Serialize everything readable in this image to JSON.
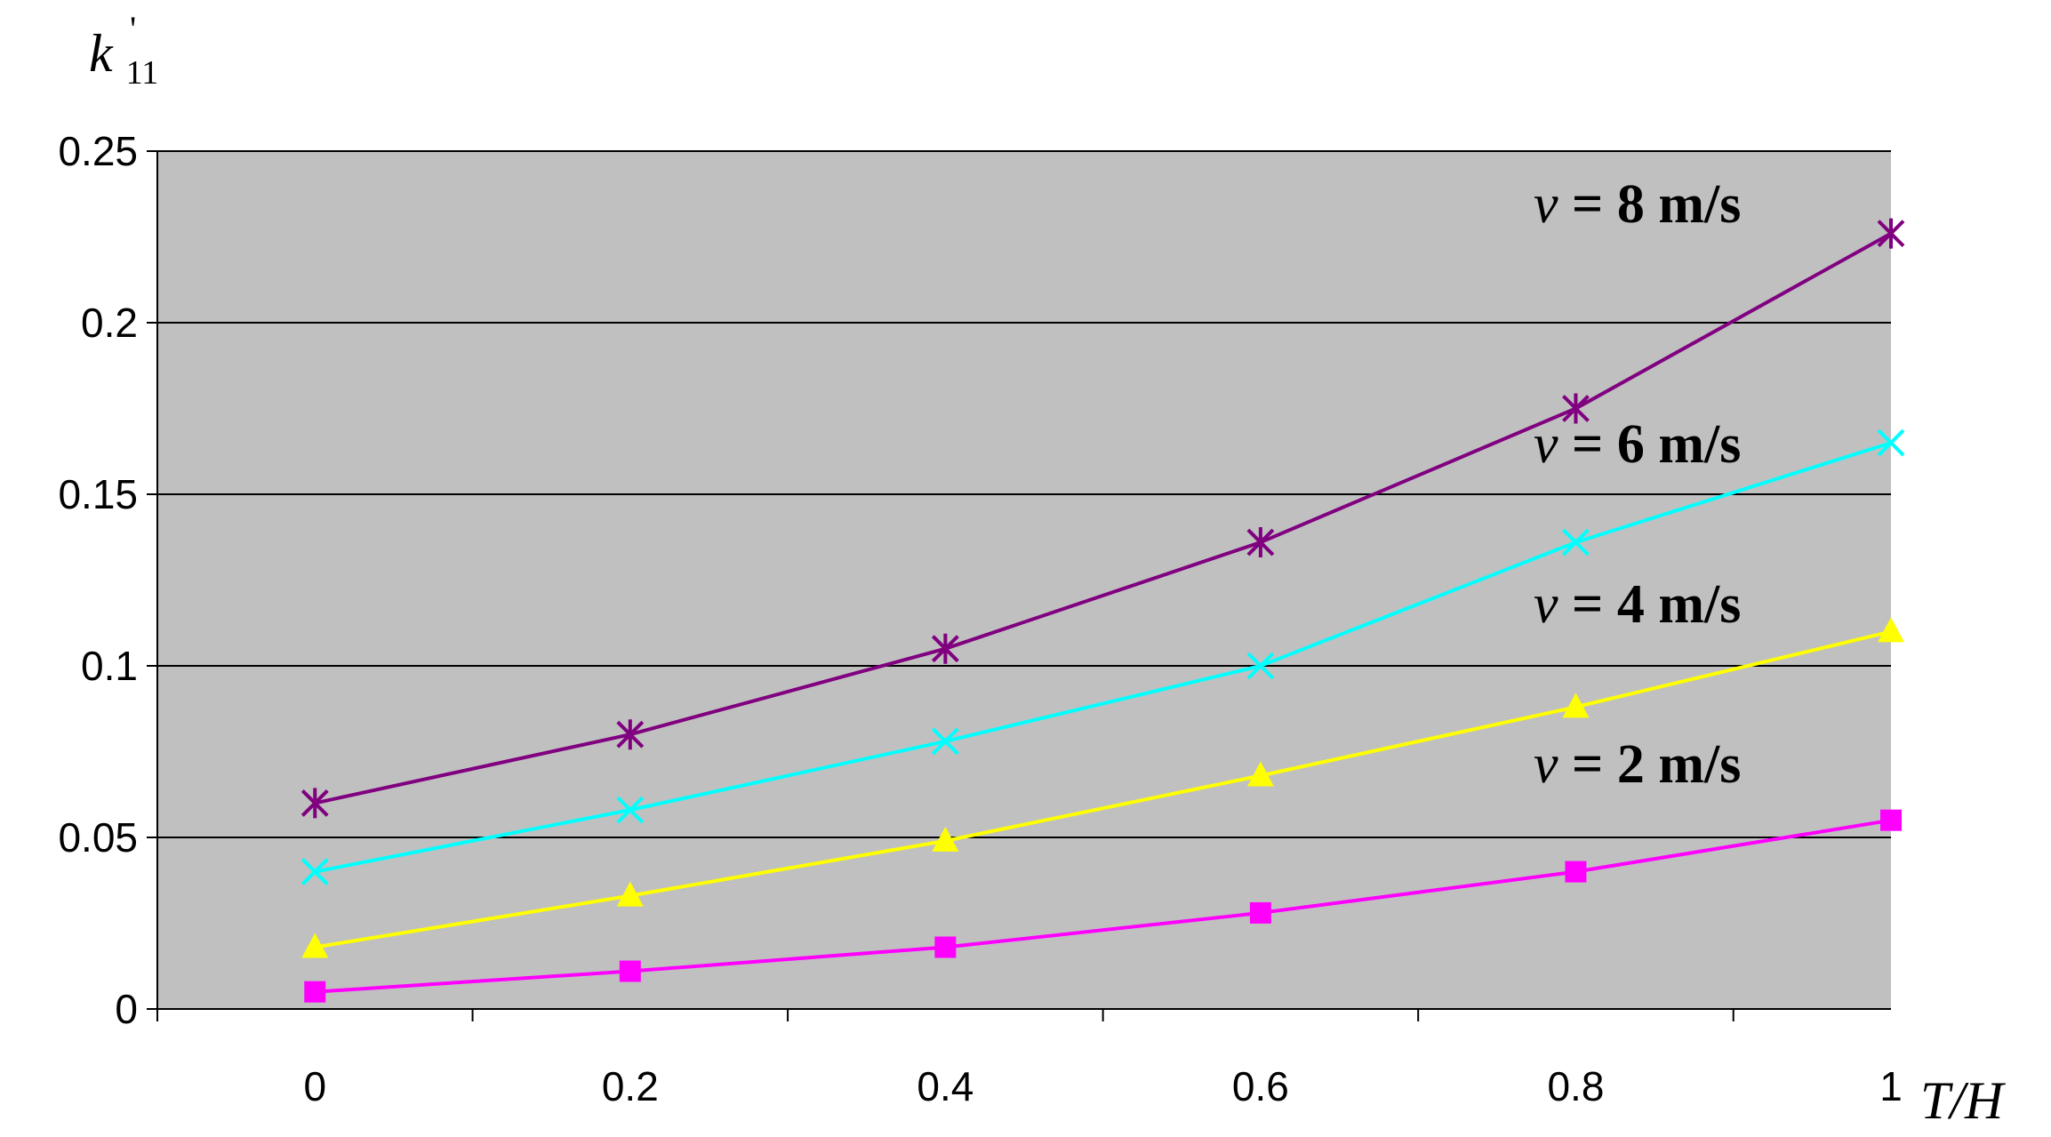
{
  "chart_data": {
    "type": "line",
    "title": "",
    "xlabel": "T/H",
    "ylabel": "k'11",
    "ylabel_parts": {
      "base": "k",
      "sup": "'",
      "sub": "11"
    },
    "x": [
      0,
      0.2,
      0.4,
      0.6,
      0.8,
      1
    ],
    "x_tick_labels": [
      "0",
      "0.2",
      "0.4",
      "0.6",
      "0.8",
      "1"
    ],
    "ylim": [
      0,
      0.25
    ],
    "y_ticks": [
      0,
      0.05,
      0.1,
      0.15,
      0.2,
      0.25
    ],
    "y_tick_labels": [
      "0",
      "0.05",
      "0.1",
      "0.15",
      "0.2",
      "0.25"
    ],
    "grid": "horizontal",
    "plot_background": "#c0c0c0",
    "legend": "none (inline labels)",
    "series": [
      {
        "name": "v = 2 m/s",
        "color": "#ff00ff",
        "marker": "square",
        "values": [
          0.005,
          0.011,
          0.018,
          0.028,
          0.04,
          0.055
        ]
      },
      {
        "name": "v = 4 m/s",
        "color": "#ffff00",
        "marker": "triangle",
        "values": [
          0.018,
          0.033,
          0.049,
          0.068,
          0.088,
          0.11
        ]
      },
      {
        "name": "v = 6 m/s",
        "color": "#00ffff",
        "marker": "x",
        "values": [
          0.04,
          0.058,
          0.078,
          0.1,
          0.136,
          0.165
        ]
      },
      {
        "name": "v = 8 m/s",
        "color": "#800080",
        "marker": "star",
        "values": [
          0.06,
          0.08,
          0.105,
          0.136,
          0.175,
          0.226
        ]
      }
    ],
    "series_label_parts": [
      {
        "var": "v",
        "rest": " = 2 m/s"
      },
      {
        "var": "v",
        "rest": " = 4 m/s"
      },
      {
        "var": "v",
        "rest": " = 6 m/s"
      },
      {
        "var": "v",
        "rest": " = 8 m/s"
      }
    ]
  }
}
